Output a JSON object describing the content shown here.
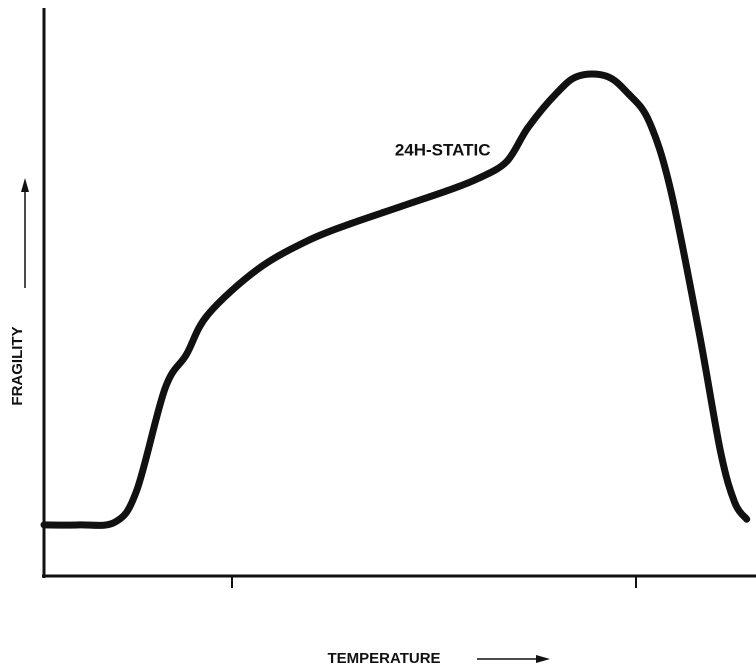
{
  "chart_data": {
    "type": "line",
    "title": "",
    "xlabel": "TEMPERATURE",
    "ylabel": "FRAGILITY",
    "xlim": [
      0,
      100
    ],
    "ylim": [
      0,
      100
    ],
    "x_tick_labels": [],
    "y_tick_labels": [],
    "grid": false,
    "legend": "none",
    "axis_arrows": true,
    "series": [
      {
        "name": "24H-STATIC",
        "color": "#111111",
        "x": [
          0,
          5,
          10,
          13,
          17,
          20,
          23,
          30,
          37,
          43,
          50,
          57,
          61,
          65,
          68,
          72,
          75,
          79,
          82,
          85,
          88,
          92,
          95,
          97,
          98.7
        ],
        "y": [
          9,
          9,
          9.5,
          15,
          33,
          39,
          46,
          54,
          59,
          62,
          65,
          68,
          70,
          73,
          79,
          85,
          88,
          88,
          85,
          80,
          68,
          43,
          22,
          13,
          10
        ]
      }
    ],
    "annotations": [
      {
        "text": "24H-STATIC",
        "x": 56,
        "y": 74
      }
    ]
  }
}
